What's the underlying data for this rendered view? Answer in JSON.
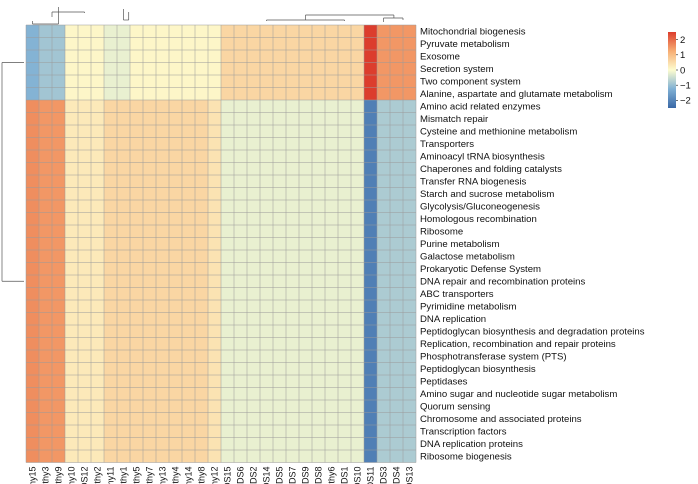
{
  "chart_data": {
    "type": "heatmap",
    "title": "",
    "xlabel": "",
    "ylabel": "",
    "columns": [
      "Healthy15",
      "Healthy3",
      "Healthy9",
      "Healthy10",
      "DS12",
      "Healthy2",
      "Healthy11",
      "Healthy1",
      "Healthy5",
      "Healthy7",
      "Healthy13",
      "Healthy4",
      "Healthy14",
      "Healthy8",
      "Healthy12",
      "DS15",
      "DS6",
      "DS2",
      "DS14",
      "DS5",
      "DS7",
      "DS9",
      "DS8",
      "Healthy6",
      "DS1",
      "DS10",
      "DS11",
      "DS3",
      "DS4",
      "DS13"
    ],
    "rows": [
      "Mitochondrial biogenesis",
      "Pyruvate metabolism",
      "Exosome",
      "Secretion system",
      "Two component system",
      "Alanine, aspartate and glutamate metabolism",
      "Amino acid related enzymes",
      "Mismatch repair",
      "Cysteine and methionine metabolism",
      "Transporters",
      "Aminoacyl tRNA biosynthesis",
      "Chaperones and folding catalysts",
      "Transfer RNA biogenesis",
      "Starch and sucrose metabolism",
      "Glycolysis/Gluconeogenesis",
      "Homologous recombination",
      "Ribosome",
      "Purine metabolism",
      "Galactose metabolism",
      "Prokaryotic Defense System",
      "DNA repair and recombination proteins",
      "ABC transporters",
      "Pyrimidine metabolism",
      "DNA replication",
      "Peptidoglycan biosynthesis and degradation proteins",
      "Replication, recombination and repair proteins",
      "Phosphotransferase system (PTS)",
      "Peptidoglycan biosynthesis",
      "Peptidases",
      "Amino sugar and nucleotide sugar metabolism",
      "Quorum sensing",
      "Chromosome and associated proteins",
      "Transcription factors",
      "DNA replication proteins",
      "Ribosome biogenesis"
    ],
    "row_groups": [
      {
        "rows": "Mitochondrial biogenesis … Alanine, aspartate and glutamate metabolism",
        "values": [
          -1.2,
          -0.9,
          -0.9,
          0.1,
          0.1,
          0.1,
          -0.2,
          -0.2,
          0.1,
          0.1,
          0.1,
          0.1,
          0.1,
          0.1,
          0.1,
          0.6,
          0.6,
          0.6,
          0.6,
          0.6,
          0.6,
          0.6,
          0.6,
          0.6,
          0.6,
          0.6,
          2.5,
          1.5,
          1.5,
          1.5
        ]
      },
      {
        "rows": "Amino acid related enzymes … Ribosome biogenesis",
        "values": [
          1.6,
          1.5,
          1.5,
          0.3,
          0.3,
          0.3,
          0.6,
          0.6,
          0.6,
          0.6,
          0.6,
          0.6,
          0.6,
          0.6,
          0.4,
          -0.2,
          -0.2,
          -0.2,
          -0.2,
          -0.2,
          -0.2,
          -0.2,
          -0.2,
          -0.2,
          -0.2,
          -0.2,
          -2.1,
          -0.8,
          -0.8,
          -0.8
        ]
      }
    ],
    "legend": {
      "placement": "top-right",
      "ticks": [
        2,
        1,
        0,
        -1,
        -2
      ],
      "tick_labels": [
        "2",
        "1",
        "0",
        "−1",
        "−2"
      ],
      "range": [
        -2.5,
        2.5
      ],
      "colors": [
        "#3a68a6",
        "#7fb0d4",
        "#fdfccf",
        "#f7ad73",
        "#dc3d2d"
      ]
    },
    "grid": true,
    "row_dendrogram": "two clusters: first 6 rows and remaining 29 rows",
    "column_dendrogram": "two main clusters, DS11/DS3/DS4/DS13 separate"
  }
}
